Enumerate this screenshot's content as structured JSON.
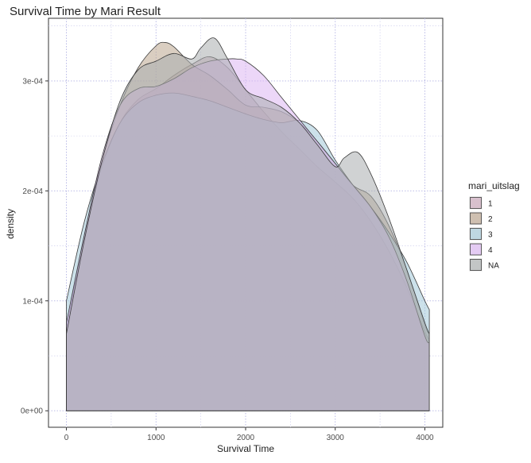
{
  "chart_data": {
    "type": "area",
    "title": "Survival Time by Mari Result",
    "xlabel": "Survival Time",
    "ylabel": "density",
    "xlim": [
      -200,
      4200
    ],
    "ylim": [
      -1.5e-05,
      0.000357
    ],
    "x_ticks": [
      0,
      1000,
      2000,
      3000,
      4000
    ],
    "x_tick_labels": [
      "0",
      "1000",
      "2000",
      "3000",
      "4000"
    ],
    "y_ticks": [
      0,
      0.0001,
      0.0002,
      0.0003
    ],
    "y_tick_labels": [
      "0e+00",
      "1e-04",
      "2e-04",
      "3e-04"
    ],
    "grid": true,
    "legend_title": "mari_uitslag",
    "legend_position": "right",
    "series": [
      {
        "name": "1",
        "color": "#C9A5B8",
        "x": [
          0,
          200,
          400,
          600,
          800,
          1000,
          1200,
          1400,
          1600,
          1800,
          2000,
          2200,
          2400,
          2600,
          2800,
          3000,
          3200,
          3400,
          3600,
          3800,
          4000,
          4050
        ],
        "y": [
          7e-05,
          0.000158,
          0.000222,
          0.000262,
          0.000283,
          0.000293,
          0.000305,
          0.000315,
          0.000322,
          0.000312,
          0.000292,
          0.000272,
          0.000254,
          0.000238,
          0.000222,
          0.000208,
          0.000193,
          0.000172,
          0.000145,
          0.000112,
          7.2e-05,
          6.5e-05
        ]
      },
      {
        "name": "2",
        "color": "#BBA58E",
        "x": [
          0,
          200,
          400,
          600,
          800,
          1000,
          1100,
          1200,
          1400,
          1600,
          1800,
          2000,
          2200,
          2400,
          2600,
          2800,
          3000,
          3200,
          3400,
          3600,
          3800,
          4000,
          4050
        ],
        "y": [
          7.5e-05,
          0.00016,
          0.000228,
          0.000278,
          0.000312,
          0.000332,
          0.000335,
          0.000331,
          0.000315,
          0.000305,
          0.000292,
          0.000278,
          0.000276,
          0.000272,
          0.000262,
          0.000245,
          0.000225,
          0.000205,
          0.000195,
          0.000168,
          0.000128,
          7.8e-05,
          7e-05
        ]
      },
      {
        "name": "3",
        "color": "#A3C9D8",
        "x": [
          0,
          200,
          400,
          600,
          800,
          1000,
          1200,
          1400,
          1600,
          1800,
          2000,
          2200,
          2400,
          2600,
          2800,
          3000,
          3200,
          3400,
          3600,
          3800,
          4000,
          4050
        ],
        "y": [
          0.0001,
          0.000172,
          0.000225,
          0.000262,
          0.00028,
          0.000287,
          0.000289,
          0.000286,
          0.000282,
          0.000276,
          0.00027,
          0.000265,
          0.000262,
          0.000264,
          0.000255,
          0.000228,
          0.000205,
          0.000185,
          0.000162,
          0.000135,
          0.0001,
          9.2e-05
        ]
      },
      {
        "name": "4",
        "color": "#DCB6F2",
        "x": [
          0,
          200,
          400,
          600,
          800,
          1000,
          1200,
          1400,
          1600,
          1800,
          1900,
          2000,
          2200,
          2400,
          2600,
          2800,
          3000,
          3200,
          3400,
          3600,
          3800,
          4000,
          4050
        ],
        "y": [
          8e-05,
          0.00016,
          0.000232,
          0.000278,
          0.000293,
          0.000295,
          0.000302,
          0.000312,
          0.000318,
          0.00032,
          0.00032,
          0.000318,
          0.000305,
          0.000285,
          0.000265,
          0.000245,
          0.000225,
          0.000205,
          0.000185,
          0.000158,
          0.000118,
          6.8e-05,
          6.2e-05
        ]
      },
      {
        "name": "NA",
        "color": "#A9ADAE",
        "x": [
          0,
          200,
          400,
          600,
          800,
          1000,
          1200,
          1400,
          1500,
          1650,
          1800,
          2000,
          2200,
          2400,
          2600,
          2800,
          3000,
          3100,
          3250,
          3400,
          3600,
          3800,
          4000,
          4050
        ],
        "y": [
          7e-05,
          0.000155,
          0.000228,
          0.000282,
          0.00031,
          0.000318,
          0.000325,
          0.00032,
          0.00033,
          0.000339,
          0.00032,
          0.000292,
          0.000284,
          0.000276,
          0.000262,
          0.000242,
          0.000222,
          0.00023,
          0.000235,
          0.000215,
          0.000175,
          0.000128,
          8e-05,
          7e-05
        ]
      }
    ]
  }
}
